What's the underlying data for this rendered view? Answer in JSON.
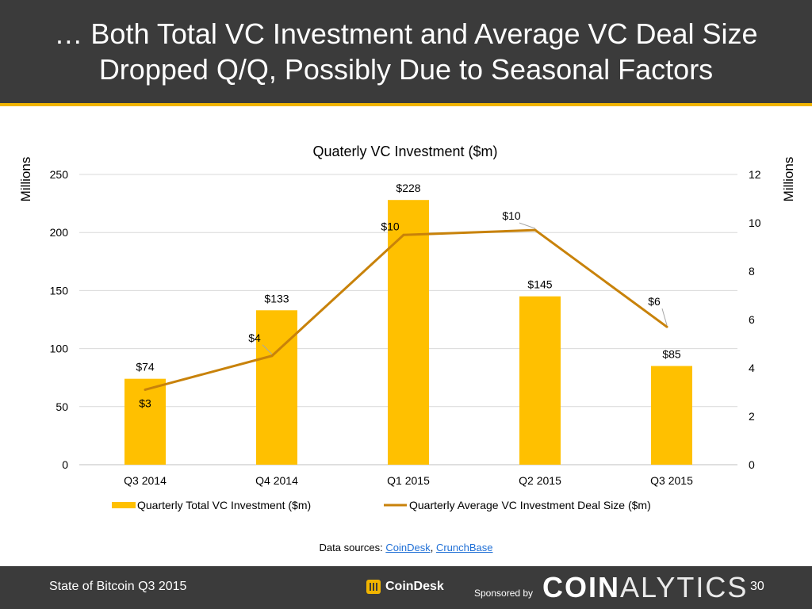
{
  "header": {
    "title_line1": "… Both Total VC Investment and Average VC Deal Size",
    "title_line2": "Dropped Q/Q, Possibly Due to Seasonal Factors"
  },
  "chart_data": {
    "type": "bar",
    "title": "Quaterly VC Investment ($m)",
    "categories": [
      "Q3 2014",
      "Q4 2014",
      "Q1 2015",
      "Q2 2015",
      "Q3 2015"
    ],
    "ylabel_left": "Millions",
    "ylabel_right": "Millions",
    "ylim_left": [
      0,
      250
    ],
    "ylim_right": [
      0,
      12
    ],
    "yticks_left": [
      "0",
      "50",
      "100",
      "150",
      "200",
      "250"
    ],
    "yticks_right": [
      "0",
      "2",
      "4",
      "6",
      "8",
      "10",
      "12"
    ],
    "grid": true,
    "legend_position": "bottom",
    "series": [
      {
        "name": "Quarterly Total VC Investment ($m)",
        "type": "bar",
        "axis": "left",
        "color": "#FFC000",
        "values": [
          74,
          133,
          228,
          145,
          85
        ],
        "labels": [
          "$74",
          "$133",
          "$228",
          "$145",
          "$85"
        ]
      },
      {
        "name": "Quarterly Average VC Investment Deal Size ($m)",
        "type": "line",
        "axis": "right",
        "color": "#C8820A",
        "values": [
          3.1,
          4.5,
          9.5,
          9.7,
          5.7
        ],
        "labels": [
          "$3",
          "$4",
          "$10",
          "$10",
          "$6"
        ]
      }
    ]
  },
  "sources": {
    "prefix": "Data sources: ",
    "link1": "CoinDesk",
    "sep": ", ",
    "link2": "CrunchBase"
  },
  "footer": {
    "report_name": "State of Bitcoin Q3 2015",
    "coindesk_label": "CoinDesk",
    "sponsored_by": "Sponsored by",
    "brand_bold": "COIN",
    "brand_thin": "ALYTICS",
    "page_number": "30"
  }
}
